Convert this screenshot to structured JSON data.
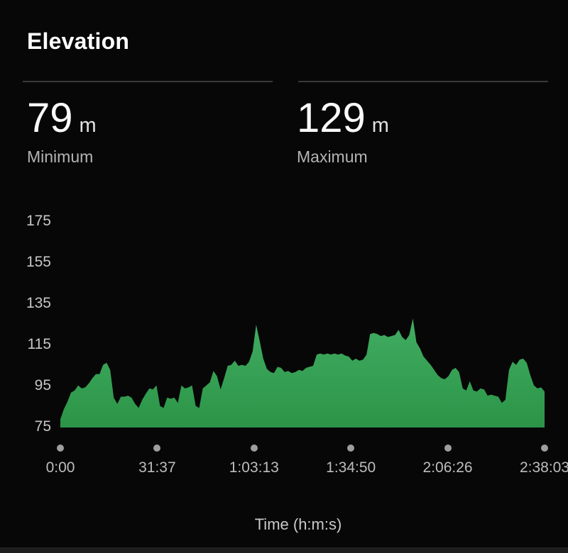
{
  "card": {
    "title": "Elevation",
    "stats": [
      {
        "value": "79",
        "unit": "m",
        "label": "Minimum"
      },
      {
        "value": "129",
        "unit": "m",
        "label": "Maximum"
      }
    ]
  },
  "chart_data": {
    "type": "area",
    "title": "Elevation",
    "xlabel": "Time (h:m:s)",
    "unit": "m",
    "x_tick_labels": [
      "0:00",
      "31:37",
      "1:03:13",
      "1:34:50",
      "2:06:26",
      "2:38:03"
    ],
    "y_tick_labels": [
      "75",
      "95",
      "115",
      "135",
      "155",
      "175"
    ],
    "ylim": [
      75,
      185
    ],
    "total_time": "2:38:03",
    "min_elevation_m": 79,
    "max_elevation_m": 129,
    "elevations_m": [
      79,
      84,
      87.5,
      92,
      93,
      95.5,
      94,
      94.5,
      96.5,
      99,
      101,
      101,
      105.5,
      106.5,
      103,
      89.5,
      86.5,
      90,
      90,
      90.5,
      89.5,
      86.5,
      84.5,
      88.5,
      91.5,
      94,
      93.5,
      95.5,
      85.5,
      84.5,
      89.5,
      89,
      89.5,
      87,
      95.5,
      94,
      94.5,
      95.5,
      85.5,
      84.5,
      94,
      95.5,
      97,
      102.5,
      100,
      93.5,
      99,
      105,
      105.5,
      107.5,
      105,
      105.5,
      105,
      107,
      112,
      125,
      117,
      108.5,
      103.5,
      102,
      101.5,
      104.5,
      104,
      102,
      102.5,
      101.5,
      102,
      103,
      102.5,
      104,
      104.5,
      105,
      110.5,
      111,
      110.5,
      111,
      110.5,
      111,
      110.5,
      111,
      110,
      109.5,
      107.5,
      108.5,
      107.5,
      108,
      110.5,
      120.5,
      121,
      120.5,
      119.5,
      120,
      119,
      119.5,
      120,
      122.5,
      119,
      117.5,
      120,
      128,
      116.5,
      113.5,
      109.5,
      107.5,
      105.5,
      103,
      100.5,
      99,
      98.5,
      100,
      103,
      104,
      102,
      94,
      93,
      97.5,
      93,
      92.5,
      94,
      93.5,
      90.5,
      91,
      90.5,
      90,
      87,
      88.5,
      103,
      107,
      105.5,
      108,
      108.5,
      106.5,
      100.5,
      95.5,
      94,
      94.5,
      92.5
    ]
  },
  "colors": {
    "background": "#070707",
    "area_fill_top": "#41ad62",
    "area_fill_bottom": "#2b9447",
    "axis_text": "#c7c7c7",
    "divider": "#3a3a3a",
    "tick_dot": "#9e9e9e"
  }
}
